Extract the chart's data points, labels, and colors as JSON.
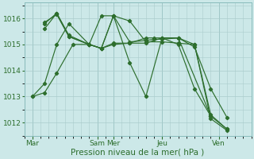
{
  "bg_color": "#cce8e8",
  "grid_color": "#aacccc",
  "line_color": "#2d6e2d",
  "xlabel": "Pression niveau de la mer( hPa )",
  "xlabel_color": "#2d6e2d",
  "tick_color": "#2d6e2d",
  "ylim": [
    1011.5,
    1016.6
  ],
  "yticks": [
    1012,
    1013,
    1014,
    1015,
    1016
  ],
  "xlim": [
    0,
    28
  ],
  "day_tick_positions": [
    1,
    9,
    11,
    17,
    24
  ],
  "day_labels": [
    "Mar",
    "Sam",
    "Mer",
    "Jeu",
    "Ven"
  ],
  "vline_positions": [
    1,
    9,
    11,
    17,
    24
  ],
  "lines": [
    {
      "x": [
        1,
        2.5,
        4,
        6,
        8,
        9.5,
        11,
        13,
        15,
        16,
        17,
        19,
        21,
        23,
        25
      ],
      "y": [
        1013.0,
        1013.15,
        1013.9,
        1015.0,
        1015.0,
        1014.85,
        1016.1,
        1015.1,
        1015.15,
        1015.2,
        1015.2,
        1015.25,
        1014.9,
        1013.3,
        1012.2
      ]
    },
    {
      "x": [
        1,
        2.5,
        4,
        5.5,
        8,
        9.5,
        11,
        13,
        15,
        17,
        19,
        21,
        23,
        25
      ],
      "y": [
        1013.0,
        1013.5,
        1015.0,
        1015.8,
        1015.0,
        1016.1,
        1016.1,
        1014.3,
        1013.0,
        1015.25,
        1015.25,
        1015.0,
        1012.15,
        1011.7
      ]
    },
    {
      "x": [
        2.5,
        4,
        5.5,
        8,
        9.5,
        11,
        13,
        15,
        17,
        19,
        23,
        25
      ],
      "y": [
        1015.8,
        1016.2,
        1015.3,
        1015.0,
        1014.85,
        1015.0,
        1015.05,
        1015.05,
        1015.25,
        1015.25,
        1012.25,
        1011.75
      ]
    },
    {
      "x": [
        2.5,
        4,
        5.5,
        8,
        9.5,
        11,
        13,
        15,
        17,
        19,
        21,
        23,
        25
      ],
      "y": [
        1015.6,
        1016.2,
        1015.35,
        1015.0,
        1014.85,
        1016.1,
        1015.9,
        1015.1,
        1015.1,
        1015.05,
        1015.0,
        1012.3,
        1011.75
      ]
    },
    {
      "x": [
        2.5,
        4,
        5.5,
        8,
        9.5,
        11,
        13,
        15,
        16,
        17,
        19,
        21,
        23
      ],
      "y": [
        1015.85,
        1016.15,
        1015.3,
        1015.0,
        1014.85,
        1015.05,
        1015.05,
        1015.25,
        1015.25,
        1015.25,
        1015.0,
        1013.3,
        1012.25
      ]
    }
  ]
}
